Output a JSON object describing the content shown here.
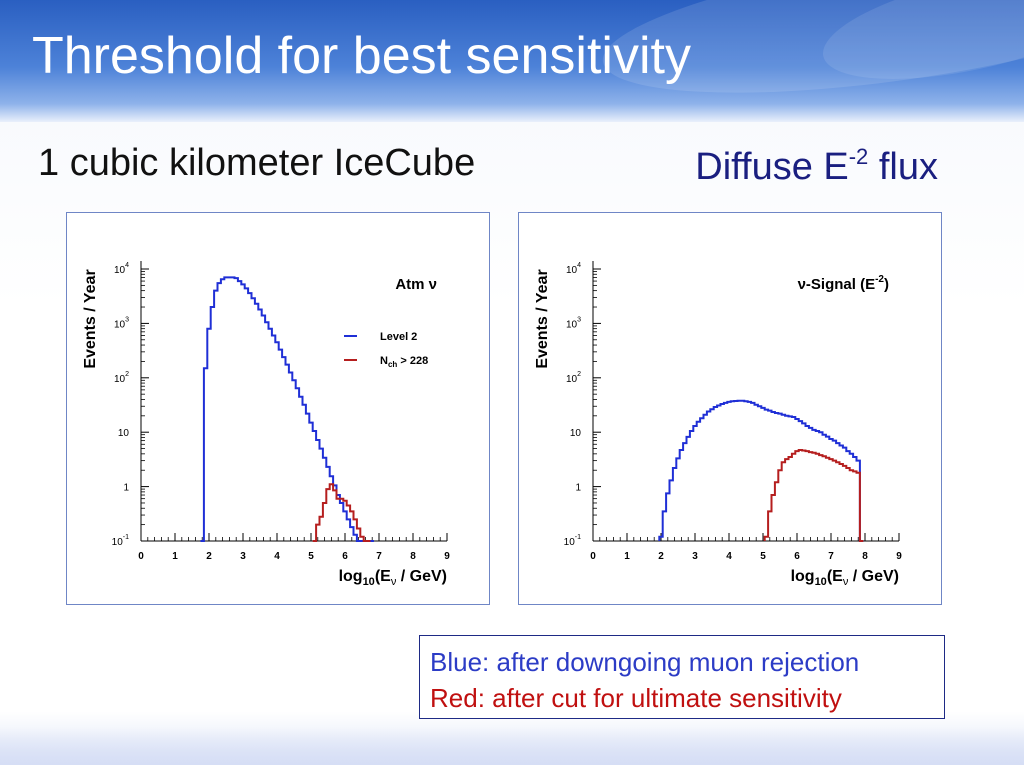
{
  "slide": {
    "title": "Threshold for best sensitivity",
    "subtitle": "1 cubic kilometer IceCube",
    "flux_label": "Diffuse E",
    "flux_exponent": "-2",
    "flux_suffix": " flux",
    "note_blue": "Blue: after downgoing muon rejection",
    "note_red": "Red: after cut for ultimate sensitivity"
  },
  "colors": {
    "blue": "#1f2fd6",
    "red": "#b51e1e",
    "title_text": "#ffffff",
    "flux_text": "#1a1f80"
  },
  "chart_data": [
    {
      "type": "line",
      "annotation": "Atm ν",
      "xlabel": "log10(Eν / GeV)",
      "ylabel": "Events / Year",
      "xlim": [
        0,
        9
      ],
      "ylim": [
        0.1,
        10000
      ],
      "yscale": "log",
      "xticks": [
        "0",
        "1",
        "2",
        "3",
        "4",
        "5",
        "6",
        "7",
        "8",
        "9"
      ],
      "yticks": [
        {
          "value": 0.1,
          "base": "10",
          "exp": "-1"
        },
        {
          "value": 1,
          "base": "1",
          "exp": ""
        },
        {
          "value": 10,
          "base": "10",
          "exp": ""
        },
        {
          "value": 100,
          "base": "10",
          "exp": "2"
        },
        {
          "value": 1000,
          "base": "10",
          "exp": "3"
        },
        {
          "value": 10000,
          "base": "10",
          "exp": "4"
        }
      ],
      "legend_position": "top-right",
      "series": [
        {
          "name": "Level 2",
          "color": "#1f2fd6",
          "x": [
            1.8,
            1.9,
            2.0,
            2.1,
            2.2,
            2.3,
            2.4,
            2.5,
            2.6,
            2.7,
            2.8,
            2.9,
            3.0,
            3.1,
            3.2,
            3.3,
            3.4,
            3.5,
            3.6,
            3.7,
            3.8,
            3.9,
            4.0,
            4.1,
            4.2,
            4.3,
            4.4,
            4.5,
            4.6,
            4.7,
            4.8,
            4.9,
            5.0,
            5.1,
            5.2,
            5.3,
            5.4,
            5.5,
            5.6,
            5.7,
            5.8,
            5.9,
            6.0,
            6.1,
            6.2,
            6.3,
            6.4,
            6.5,
            6.6,
            6.7,
            6.8
          ],
          "y": [
            0.1,
            150,
            800,
            2000,
            4000,
            5500,
            6500,
            7000,
            7000,
            7000,
            6800,
            6000,
            5200,
            4400,
            3600,
            2900,
            2300,
            1800,
            1400,
            1050,
            800,
            600,
            450,
            330,
            240,
            175,
            125,
            90,
            64,
            45,
            32,
            22,
            15,
            10.5,
            7.2,
            5.0,
            3.4,
            2.3,
            1.55,
            1.05,
            0.7,
            0.5,
            0.35,
            0.25,
            0.18,
            0.13,
            0.1,
            0.1,
            0.1,
            0.1,
            0.1
          ]
        },
        {
          "name": "Nch > 228",
          "label_main": "N",
          "label_sub": "ch",
          "label_tail": " > 228",
          "color": "#b51e1e",
          "x": [
            5.1,
            5.2,
            5.3,
            5.4,
            5.5,
            5.6,
            5.7,
            5.8,
            5.9,
            6.0,
            6.1,
            6.2,
            6.3,
            6.4,
            6.5,
            6.6,
            6.7
          ],
          "y": [
            0.1,
            0.2,
            0.28,
            0.5,
            0.9,
            1.1,
            0.85,
            0.6,
            0.6,
            0.55,
            0.45,
            0.35,
            0.25,
            0.17,
            0.12,
            0.1,
            0.1
          ]
        }
      ]
    },
    {
      "type": "line",
      "annotation": "ν-Signal (E",
      "annotation_exp": "-2",
      "annotation_tail": ")",
      "xlabel": "log10(Eν / GeV)",
      "ylabel": "Events / Year",
      "xlim": [
        0,
        9
      ],
      "ylim": [
        0.1,
        10000
      ],
      "yscale": "log",
      "xticks": [
        "0",
        "1",
        "2",
        "3",
        "4",
        "5",
        "6",
        "7",
        "8",
        "9"
      ],
      "yticks": [
        {
          "value": 0.1,
          "base": "10",
          "exp": "-1"
        },
        {
          "value": 1,
          "base": "1",
          "exp": ""
        },
        {
          "value": 10,
          "base": "10",
          "exp": ""
        },
        {
          "value": 100,
          "base": "10",
          "exp": "2"
        },
        {
          "value": 1000,
          "base": "10",
          "exp": "3"
        },
        {
          "value": 10000,
          "base": "10",
          "exp": "4"
        }
      ],
      "series": [
        {
          "color": "#1f2fd6",
          "x": [
            2.0,
            2.1,
            2.2,
            2.3,
            2.4,
            2.5,
            2.6,
            2.7,
            2.8,
            2.9,
            3.0,
            3.1,
            3.2,
            3.3,
            3.4,
            3.5,
            3.6,
            3.7,
            3.8,
            3.9,
            4.0,
            4.1,
            4.2,
            4.3,
            4.4,
            4.5,
            4.6,
            4.7,
            4.8,
            4.9,
            5.0,
            5.1,
            5.2,
            5.3,
            5.4,
            5.5,
            5.6,
            5.7,
            5.8,
            5.9,
            6.0,
            6.1,
            6.2,
            6.3,
            6.4,
            6.5,
            6.6,
            6.7,
            6.8,
            6.9,
            7.0,
            7.1,
            7.2,
            7.3,
            7.4,
            7.5,
            7.6,
            7.7,
            7.8,
            7.9
          ],
          "y": [
            0.12,
            0.35,
            0.75,
            1.3,
            2.2,
            3.3,
            4.7,
            6.3,
            8.2,
            10.5,
            13,
            15.5,
            18,
            21,
            24,
            26.5,
            29,
            31,
            33,
            34.5,
            36,
            37,
            37.5,
            38,
            38,
            37,
            36,
            34.5,
            32,
            30,
            28,
            26,
            25,
            23.5,
            22.5,
            22,
            21,
            20,
            19.5,
            19,
            17.5,
            16,
            14.5,
            13,
            12,
            11,
            10.5,
            10,
            9,
            8.3,
            7.5,
            7,
            6.3,
            5.7,
            5.2,
            4.5,
            4.0,
            3.5,
            3.0,
            0.1
          ]
        },
        {
          "color": "#b51e1e",
          "x": [
            5.1,
            5.2,
            5.3,
            5.4,
            5.5,
            5.6,
            5.7,
            5.8,
            5.9,
            6.0,
            6.1,
            6.2,
            6.3,
            6.4,
            6.5,
            6.6,
            6.7,
            6.8,
            6.9,
            7.0,
            7.1,
            7.2,
            7.3,
            7.4,
            7.5,
            7.6,
            7.7,
            7.8,
            7.9
          ],
          "y": [
            0.12,
            0.35,
            0.7,
            1.2,
            2.0,
            2.8,
            3.2,
            3.5,
            4.0,
            4.5,
            4.7,
            4.6,
            4.5,
            4.3,
            4.2,
            4.0,
            3.8,
            3.6,
            3.4,
            3.2,
            3.0,
            2.8,
            2.6,
            2.4,
            2.2,
            2.0,
            1.9,
            1.8,
            0.1
          ]
        }
      ]
    }
  ]
}
